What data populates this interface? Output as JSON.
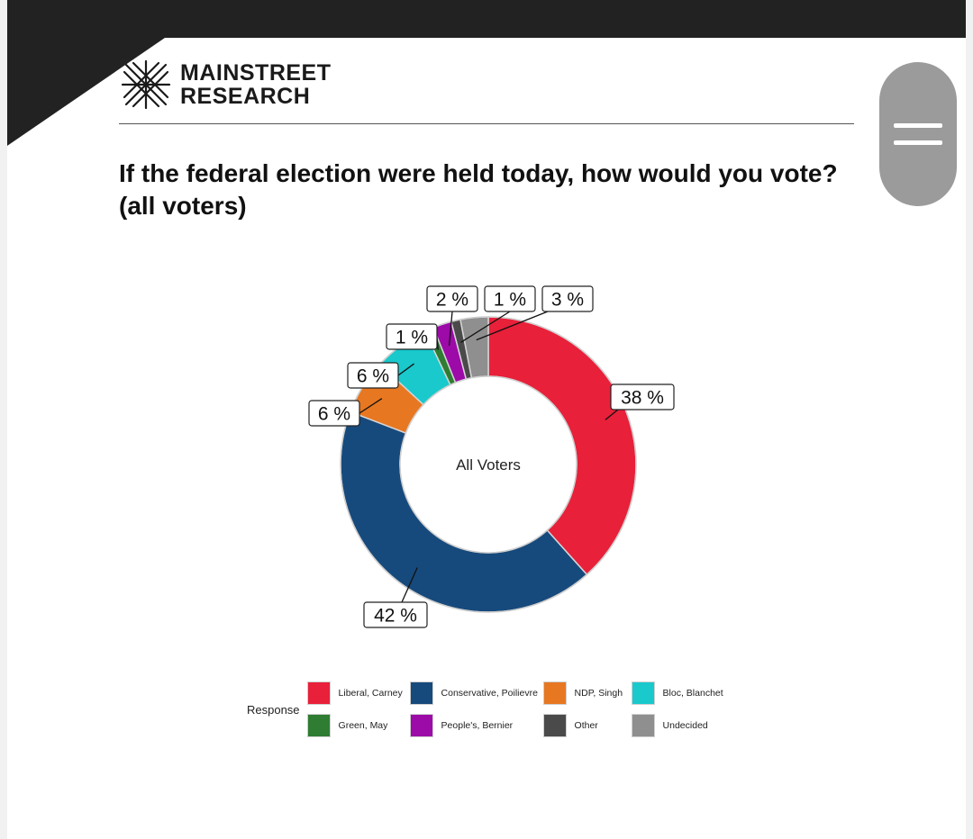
{
  "header": {
    "brand_line1": "MAINSTREET",
    "brand_line2": "RESEARCH",
    "title_line1": "If the federal election were held today, how would you vote?",
    "title_line2": "(all voters)"
  },
  "menu_button": {
    "icon": "hamburger-icon"
  },
  "chart_data": {
    "type": "pie",
    "donut": true,
    "center_label": "All Voters",
    "legend_title": "Response",
    "legend_position": "bottom",
    "slices": [
      {
        "name": "Liberal, Carney",
        "value": 38,
        "label": "38 %",
        "color": "#e8203a"
      },
      {
        "name": "Conservative, Poilievre",
        "value": 42,
        "label": "42 %",
        "color": "#174a7c"
      },
      {
        "name": "NDP, Singh",
        "value": 6,
        "label": "6 %",
        "color": "#e87722"
      },
      {
        "name": "Bloc, Blanchet",
        "value": 6,
        "label": "6 %",
        "color": "#19c9cc"
      },
      {
        "name": "Green, May",
        "value": 1,
        "label": "1 %",
        "color": "#2e7d32"
      },
      {
        "name": "People's, Bernier",
        "value": 2,
        "label": "2 %",
        "color": "#9c0aa8"
      },
      {
        "name": "Other",
        "value": 1,
        "label": "1 %",
        "color": "#4a4a4a"
      },
      {
        "name": "Undecided",
        "value": 3,
        "label": "3 %",
        "color": "#8f8f8f"
      }
    ]
  }
}
